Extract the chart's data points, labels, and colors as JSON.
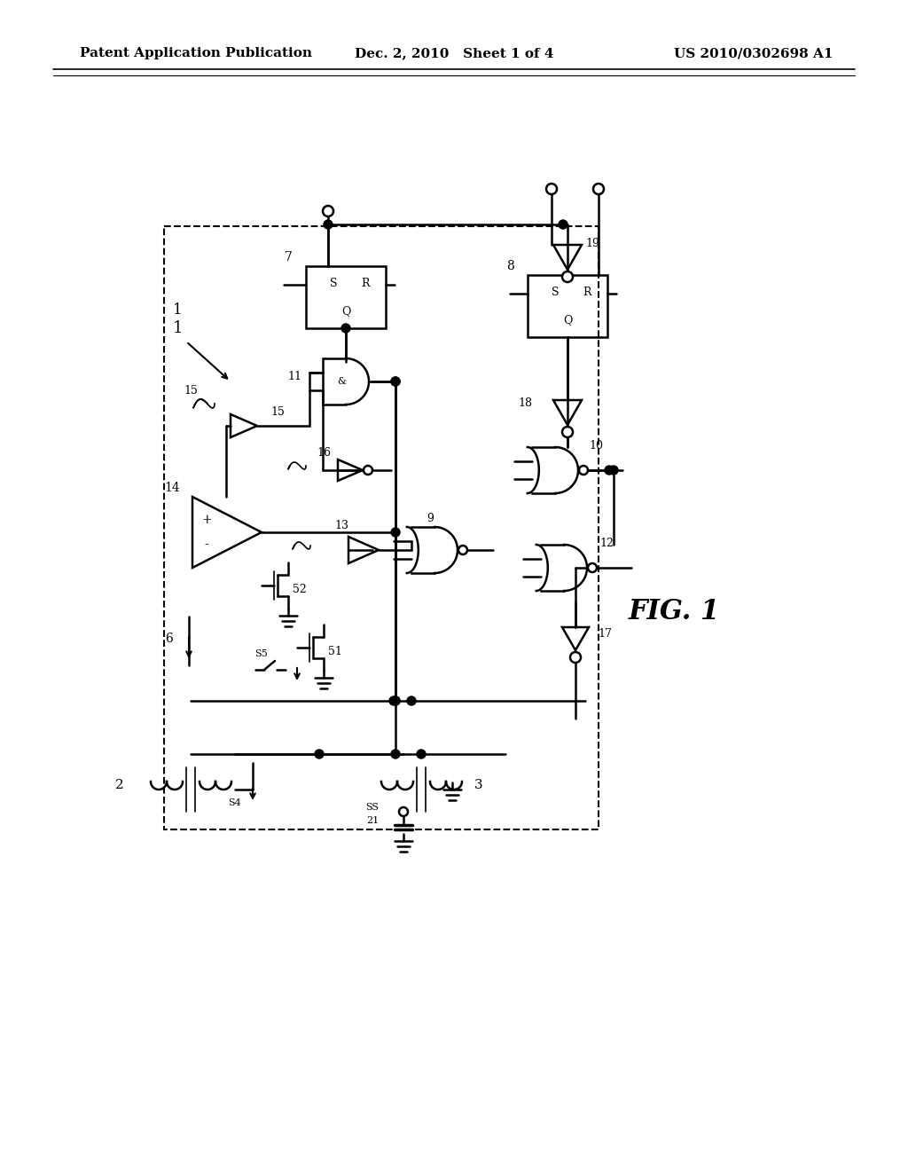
{
  "header_left": "Patent Application Publication",
  "header_center": "Dec. 2, 2010   Sheet 1 of 4",
  "header_right": "US 2010/0302698 A1",
  "fig_label": "FIG. 1",
  "bg_color": "#ffffff",
  "lc": "#000000",
  "header_font_size": 11,
  "fig_label_font_size": 22
}
